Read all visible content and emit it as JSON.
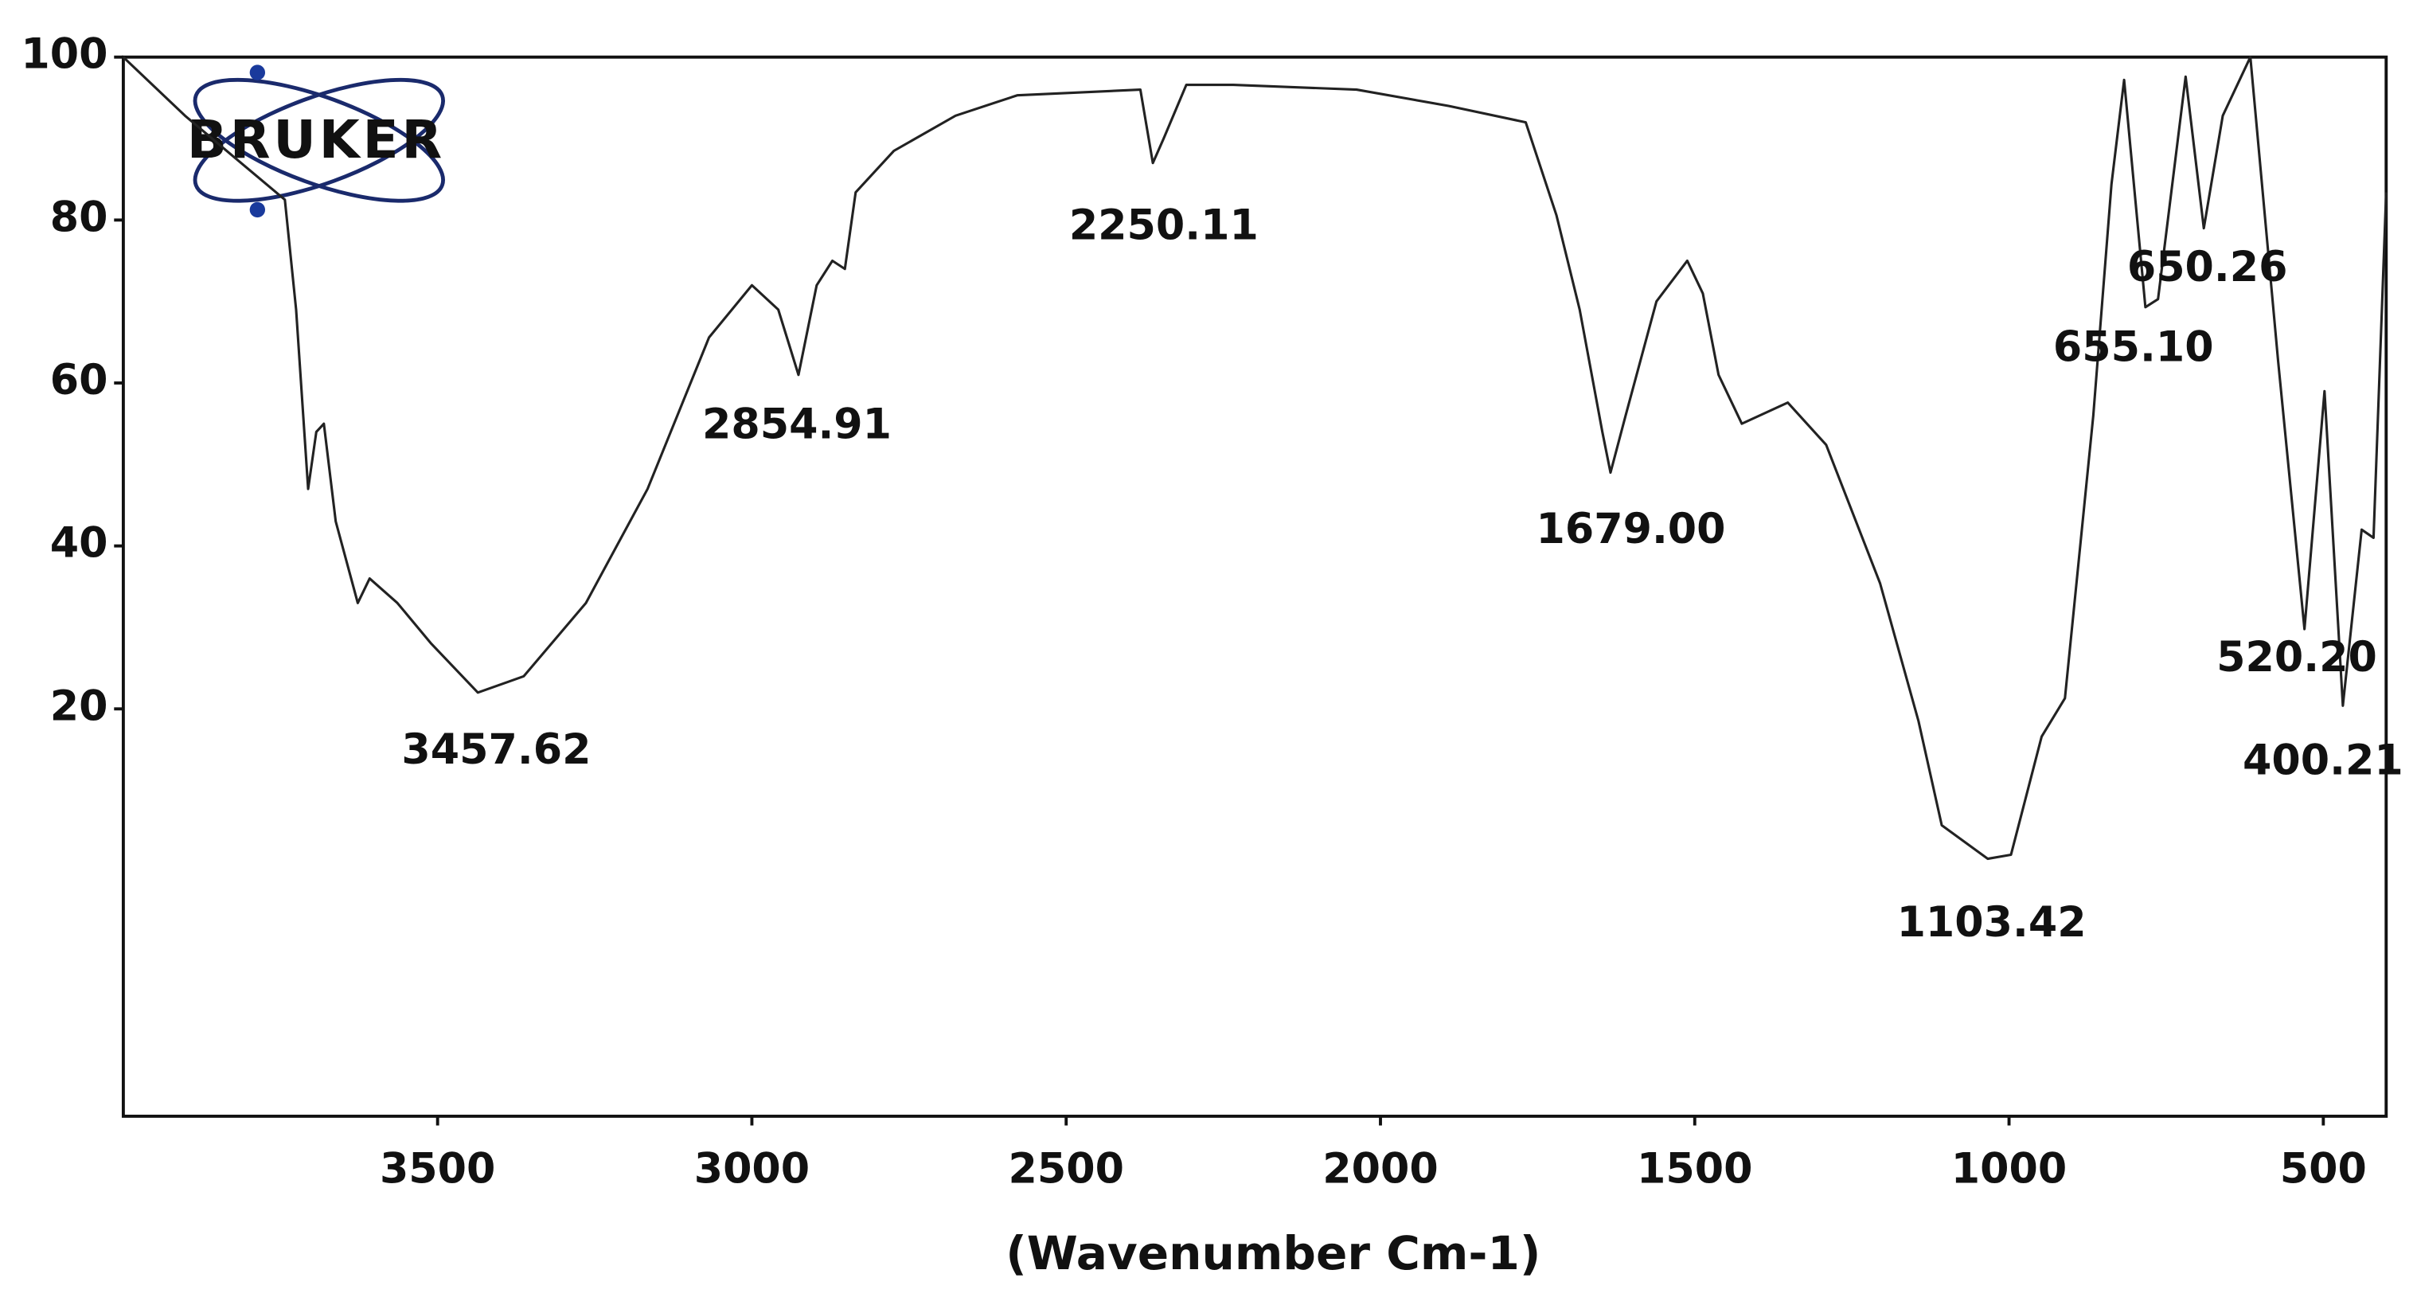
{
  "chart_data": {
    "type": "line",
    "logo": "BRUKER",
    "x_label": "(Wavenumber Cm-1)",
    "color": "#222222",
    "xlim": [
      4000,
      400
    ],
    "ylim": [
      -30,
      100
    ],
    "xticks": [
      3500,
      3000,
      2500,
      2000,
      1500,
      1000,
      500
    ],
    "yticks": [
      20,
      40,
      60,
      80,
      100
    ],
    "x": [
      4000,
      3902,
      3828,
      3743,
      3725,
      3706,
      3693,
      3681,
      3662,
      3627,
      3608,
      3564,
      3510,
      3436,
      3363,
      3264,
      3166,
      3068,
      3000,
      2958,
      2926,
      2897,
      2872,
      2852,
      2835,
      2774,
      2676,
      2578,
      2382,
      2362,
      2345,
      2309,
      2234,
      2038,
      1891,
      1769,
      1720,
      1683,
      1647,
      1634,
      1610,
      1561,
      1512,
      1487,
      1462,
      1425,
      1352,
      1291,
      1205,
      1144,
      1107,
      1034,
      997,
      948,
      911,
      866,
      837,
      817,
      783,
      763,
      719,
      690,
      660,
      616,
      572,
      530,
      498,
      469,
      439,
      420,
      400
    ],
    "values": [
      100,
      92.8,
      88,
      82.5,
      69,
      47,
      54,
      55,
      43,
      33,
      36,
      33,
      28,
      22,
      24,
      33,
      47,
      65.6,
      72,
      69,
      61,
      72,
      75,
      74,
      83.4,
      88.5,
      92.8,
      95.3,
      96,
      87,
      90,
      96.6,
      96.6,
      96,
      94,
      92,
      80.6,
      69,
      54,
      49,
      56,
      70,
      75,
      71,
      61,
      55,
      57.6,
      52.4,
      35.4,
      18.5,
      5.7,
      1.6,
      2.1,
      16.6,
      21.3,
      56,
      84.4,
      97.2,
      69.3,
      70.3,
      97.6,
      79,
      92.8,
      100,
      62.7,
      29.8,
      59,
      20.4,
      42,
      41,
      83.4
    ],
    "annotations": [
      "3457.62",
      "2854.91",
      "2250.11",
      "1679.00",
      "1103.42",
      "655.10",
      "650.26",
      "520.20",
      "400.21"
    ]
  }
}
